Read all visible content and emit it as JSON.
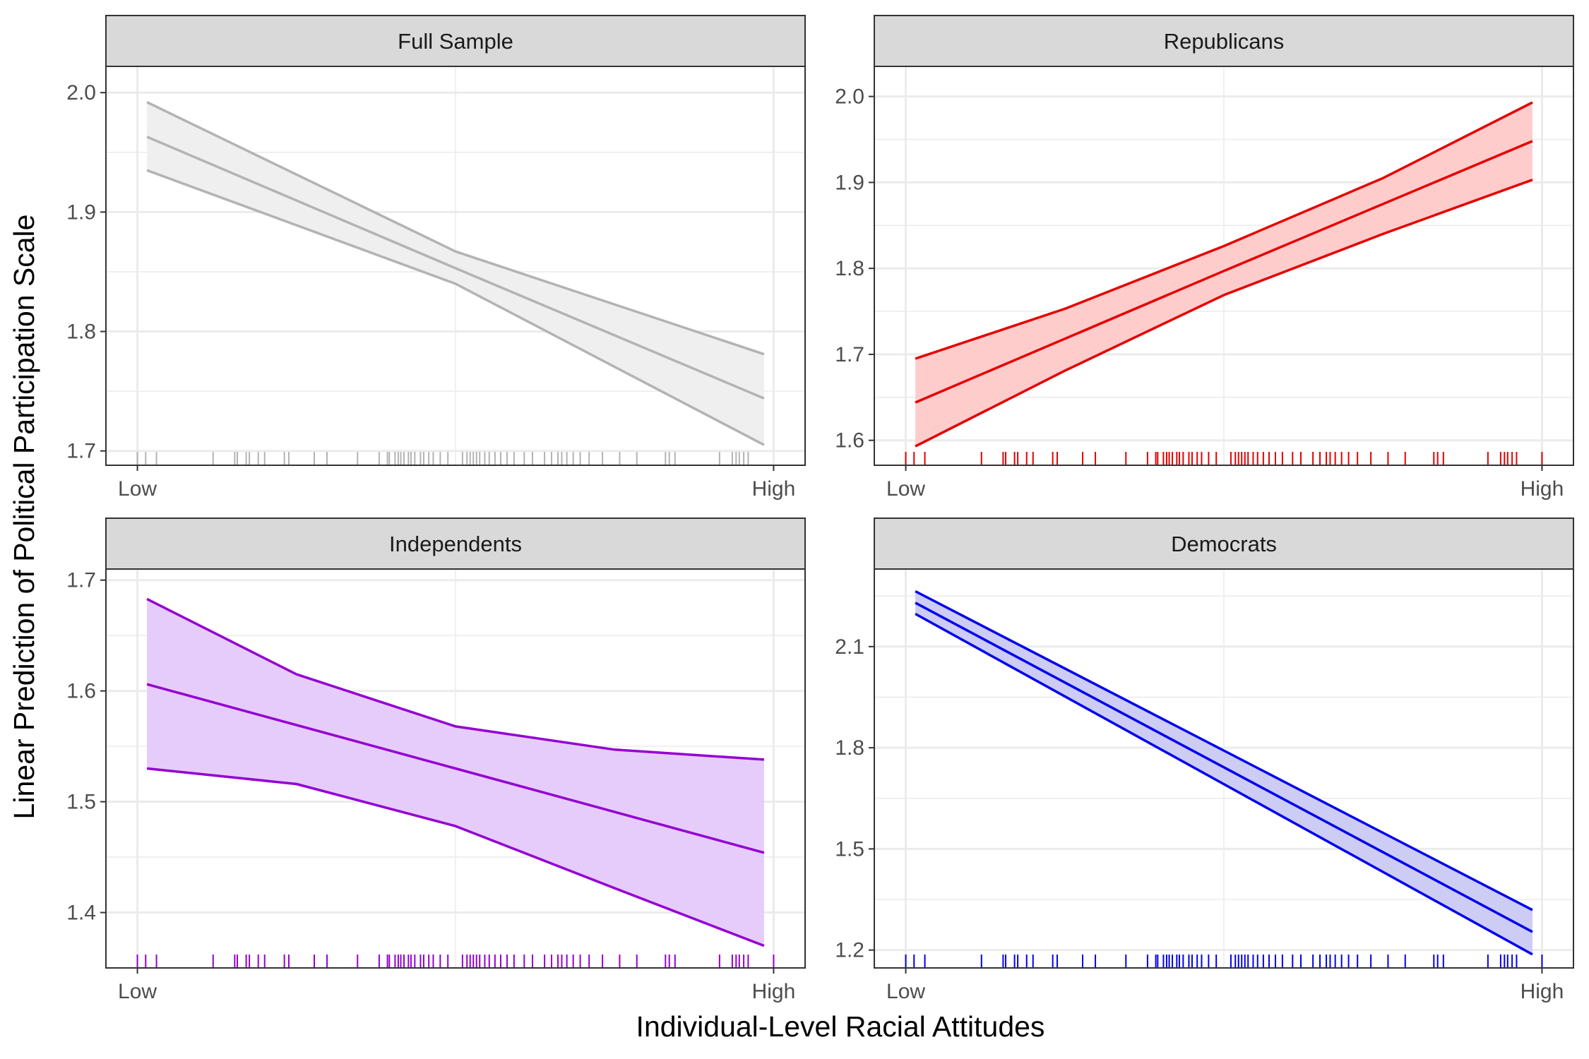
{
  "figure": {
    "xlabel": "Individual-Level Racial Attitudes",
    "ylabel": "Linear Prediction of Political Participation Scale"
  },
  "chart_data": [
    {
      "type": "line",
      "panel": "Full Sample",
      "color": "#b3b3b3",
      "band_fill": "#efefef",
      "x_tick_labels": [
        "Low",
        "High"
      ],
      "xlim": [
        0,
        1
      ],
      "ylim": [
        1.688,
        2.022
      ],
      "y_ticks": [
        1.7,
        1.8,
        1.9,
        2.0
      ],
      "y_tick_labels": [
        "1.7",
        "1.8",
        "1.9",
        "2.0"
      ],
      "series": [
        {
          "role": "upper",
          "x": [
            0.015,
            0.5,
            0.985
          ],
          "y": [
            1.992,
            1.867,
            1.781
          ]
        },
        {
          "role": "fit",
          "x": [
            0.015,
            0.5,
            0.985
          ],
          "y": [
            1.963,
            1.853,
            1.744
          ]
        },
        {
          "role": "lower",
          "x": [
            0.015,
            0.5,
            0.985
          ],
          "y": [
            1.935,
            1.84,
            1.705
          ]
        }
      ],
      "rug": [
        0.0,
        0.013,
        0.03,
        0.119,
        0.153,
        0.157,
        0.171,
        0.176,
        0.19,
        0.2,
        0.231,
        0.238,
        0.278,
        0.298,
        0.346,
        0.38,
        0.393,
        0.396,
        0.405,
        0.41,
        0.414,
        0.419,
        0.426,
        0.43,
        0.436,
        0.445,
        0.45,
        0.458,
        0.465,
        0.476,
        0.488,
        0.511,
        0.518,
        0.523,
        0.528,
        0.533,
        0.538,
        0.546,
        0.553,
        0.562,
        0.571,
        0.581,
        0.592,
        0.608,
        0.621,
        0.64,
        0.651,
        0.661,
        0.667,
        0.675,
        0.685,
        0.696,
        0.71,
        0.731,
        0.758,
        0.785,
        0.83,
        0.836,
        0.845,
        0.915,
        0.935,
        0.941,
        0.946,
        0.953,
        0.96
      ]
    },
    {
      "type": "line",
      "panel": "Republicans",
      "color": "#e60000",
      "band_fill": "#ffcccc",
      "x_tick_labels": [
        "Low",
        "High"
      ],
      "xlim": [
        0,
        1
      ],
      "ylim": [
        1.571,
        2.035
      ],
      "y_ticks": [
        1.6,
        1.7,
        1.8,
        1.9,
        2.0
      ],
      "y_tick_labels": [
        "1.6",
        "1.7",
        "1.8",
        "1.9",
        "2.0"
      ],
      "series": [
        {
          "role": "upper",
          "x": [
            0.015,
            0.25,
            0.5,
            0.75,
            0.985
          ],
          "y": [
            1.695,
            1.753,
            1.826,
            1.905,
            1.993
          ]
        },
        {
          "role": "fit",
          "x": [
            0.015,
            0.5,
            0.985
          ],
          "y": [
            1.644,
            1.797,
            1.948
          ]
        },
        {
          "role": "lower",
          "x": [
            0.015,
            0.25,
            0.5,
            0.75,
            0.985
          ],
          "y": [
            1.593,
            1.681,
            1.769,
            1.84,
            1.903
          ]
        }
      ],
      "rug": [
        0.0,
        0.013,
        0.03,
        0.119,
        0.153,
        0.157,
        0.171,
        0.176,
        0.19,
        0.2,
        0.231,
        0.238,
        0.278,
        0.298,
        0.346,
        0.38,
        0.393,
        0.396,
        0.405,
        0.41,
        0.414,
        0.419,
        0.426,
        0.43,
        0.436,
        0.445,
        0.45,
        0.458,
        0.465,
        0.476,
        0.488,
        0.511,
        0.518,
        0.523,
        0.528,
        0.533,
        0.538,
        0.546,
        0.553,
        0.562,
        0.571,
        0.581,
        0.592,
        0.608,
        0.621,
        0.64,
        0.651,
        0.661,
        0.667,
        0.675,
        0.685,
        0.696,
        0.71,
        0.731,
        0.758,
        0.785,
        0.83,
        0.836,
        0.845,
        0.915,
        0.935,
        0.941,
        0.946,
        0.953,
        0.96,
        1.0
      ]
    },
    {
      "type": "line",
      "panel": "Independents",
      "color": "#9400d3",
      "band_fill": "#e6ccfa",
      "x_tick_labels": [
        "Low",
        "High"
      ],
      "xlim": [
        0,
        1
      ],
      "ylim": [
        1.35,
        1.71
      ],
      "y_ticks": [
        1.4,
        1.5,
        1.6,
        1.7
      ],
      "y_tick_labels": [
        "1.4",
        "1.5",
        "1.6",
        "1.7"
      ],
      "series": [
        {
          "role": "upper",
          "x": [
            0.015,
            0.25,
            0.5,
            0.75,
            0.985
          ],
          "y": [
            1.683,
            1.615,
            1.568,
            1.547,
            1.538
          ]
        },
        {
          "role": "fit",
          "x": [
            0.015,
            0.5,
            0.985
          ],
          "y": [
            1.606,
            1.53,
            1.454
          ]
        },
        {
          "role": "lower",
          "x": [
            0.015,
            0.25,
            0.5,
            0.75,
            0.985
          ],
          "y": [
            1.53,
            1.516,
            1.478,
            1.422,
            1.37
          ]
        }
      ],
      "rug": [
        0.0,
        0.013,
        0.03,
        0.119,
        0.153,
        0.157,
        0.171,
        0.176,
        0.19,
        0.2,
        0.231,
        0.238,
        0.278,
        0.298,
        0.346,
        0.38,
        0.393,
        0.396,
        0.405,
        0.41,
        0.414,
        0.419,
        0.426,
        0.43,
        0.436,
        0.445,
        0.45,
        0.458,
        0.465,
        0.476,
        0.488,
        0.511,
        0.518,
        0.523,
        0.528,
        0.533,
        0.538,
        0.546,
        0.553,
        0.562,
        0.571,
        0.581,
        0.592,
        0.608,
        0.621,
        0.64,
        0.651,
        0.661,
        0.667,
        0.675,
        0.685,
        0.696,
        0.71,
        0.731,
        0.758,
        0.785,
        0.83,
        0.836,
        0.845,
        0.915,
        0.935,
        0.941,
        0.946,
        0.953,
        0.96,
        1.0
      ]
    },
    {
      "type": "line",
      "panel": "Democrats",
      "color": "#0000ee",
      "band_fill": "#ccccf5",
      "x_tick_labels": [
        "Low",
        "High"
      ],
      "xlim": [
        0,
        1
      ],
      "ylim": [
        1.147,
        2.33
      ],
      "y_ticks": [
        1.2,
        1.5,
        1.8,
        2.1
      ],
      "y_tick_labels": [
        "1.2",
        "1.5",
        "1.8",
        "2.1"
      ],
      "series": [
        {
          "role": "upper",
          "x": [
            0.015,
            0.985
          ],
          "y": [
            2.264,
            1.319
          ]
        },
        {
          "role": "fit",
          "x": [
            0.015,
            0.985
          ],
          "y": [
            2.23,
            1.254
          ]
        },
        {
          "role": "lower",
          "x": [
            0.015,
            0.985
          ],
          "y": [
            2.197,
            1.187
          ]
        }
      ],
      "rug": [
        0.0,
        0.013,
        0.03,
        0.119,
        0.153,
        0.157,
        0.171,
        0.176,
        0.19,
        0.2,
        0.231,
        0.238,
        0.278,
        0.298,
        0.346,
        0.38,
        0.393,
        0.396,
        0.405,
        0.41,
        0.414,
        0.419,
        0.426,
        0.43,
        0.436,
        0.445,
        0.45,
        0.458,
        0.465,
        0.476,
        0.488,
        0.511,
        0.518,
        0.523,
        0.528,
        0.533,
        0.538,
        0.546,
        0.553,
        0.562,
        0.571,
        0.581,
        0.592,
        0.608,
        0.621,
        0.64,
        0.651,
        0.661,
        0.667,
        0.675,
        0.685,
        0.696,
        0.71,
        0.731,
        0.758,
        0.785,
        0.83,
        0.836,
        0.845,
        0.915,
        0.935,
        0.941,
        0.946,
        0.953,
        0.96,
        1.0
      ]
    }
  ]
}
